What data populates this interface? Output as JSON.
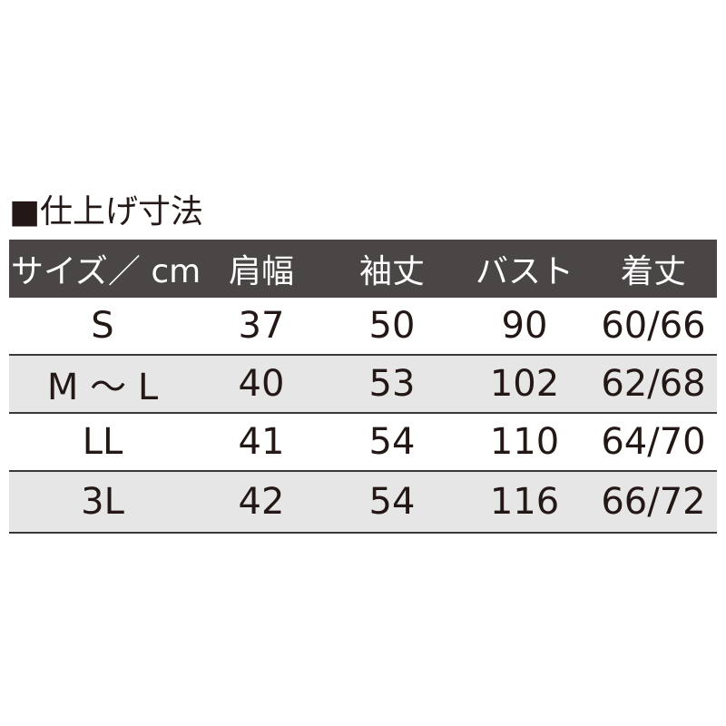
{
  "title": "■仕上げ寸法",
  "table": {
    "headers": [
      "サイズ／ cm",
      "肩幅",
      "袖丈",
      "バスト",
      "着丈"
    ],
    "rows": [
      [
        "S",
        "37",
        "50",
        "90",
        "60/66"
      ],
      [
        "M ～ L",
        "40",
        "53",
        "102",
        "62/68"
      ],
      [
        "LL",
        "41",
        "54",
        "110",
        "64/70"
      ],
      [
        "3L",
        "42",
        "54",
        "116",
        "66/72"
      ]
    ]
  },
  "colors": {
    "header_bg": "#4b4646",
    "alt_row_bg": "#e6e6e6",
    "text": "#231815"
  }
}
